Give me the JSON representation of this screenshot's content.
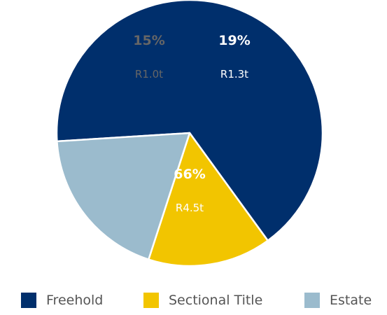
{
  "chart_data": {
    "type": "pie",
    "title": "",
    "slices": [
      {
        "label": "Freehold",
        "percent": 66,
        "percent_label": "66%",
        "amount_label": "R4.5t",
        "color": "#002f6c",
        "text_color": "#ffffff"
      },
      {
        "label": "Sectional Title",
        "percent": 15,
        "percent_label": "15%",
        "amount_label": "R1.0t",
        "color": "#f2c500",
        "text_color": "#666666"
      },
      {
        "label": "Estate",
        "percent": 19,
        "percent_label": "19%",
        "amount_label": "R1.3t",
        "color": "#9bbbcd",
        "text_color": "#ffffff"
      }
    ],
    "legend": {
      "position": "bottom",
      "items": [
        {
          "label": "Freehold",
          "color": "#002f6c"
        },
        {
          "label": "Sectional Title",
          "color": "#f2c500"
        },
        {
          "label": "Estate",
          "color": "#9bbbcd"
        }
      ]
    }
  }
}
